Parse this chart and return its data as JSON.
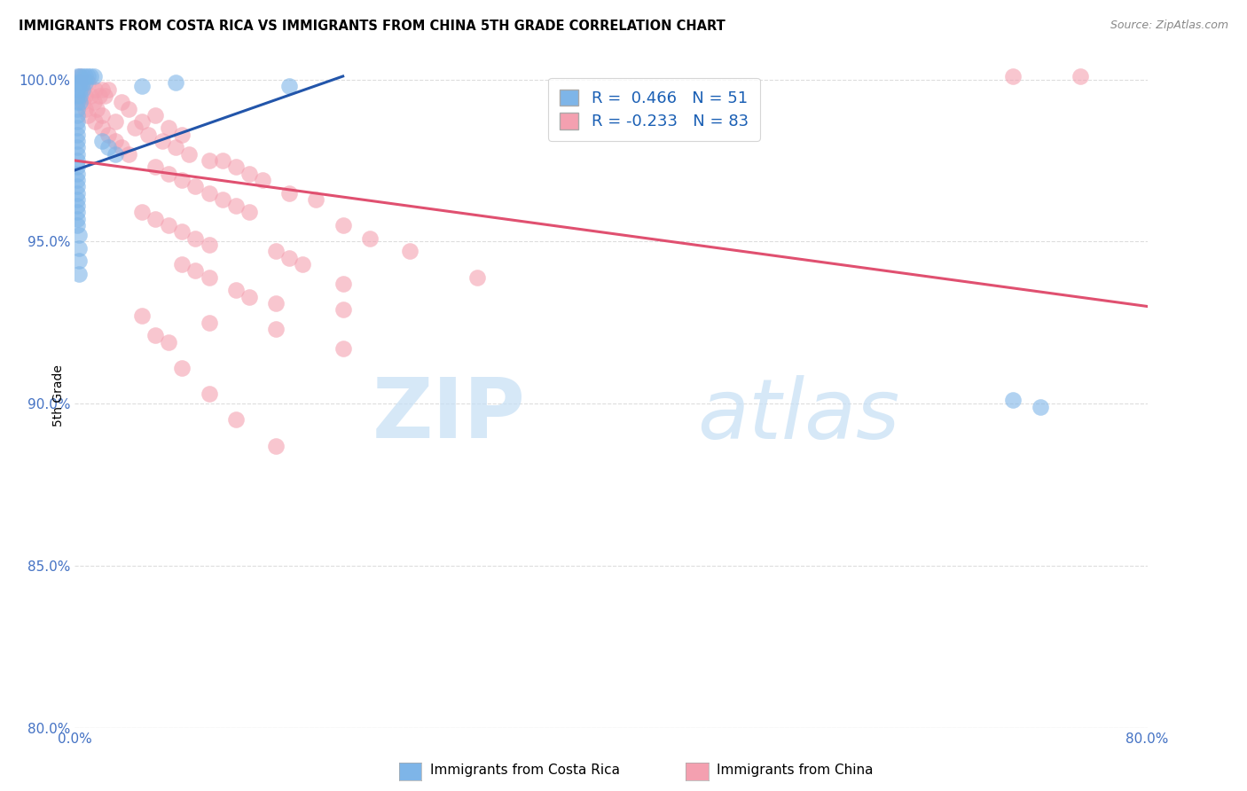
{
  "title": "IMMIGRANTS FROM COSTA RICA VS IMMIGRANTS FROM CHINA 5TH GRADE CORRELATION CHART",
  "source": "Source: ZipAtlas.com",
  "ylabel": "5th Grade",
  "x_min": 0.0,
  "x_max": 0.8,
  "y_min": 0.8,
  "y_max": 1.005,
  "x_tick_positions": [
    0.0,
    0.1,
    0.2,
    0.3,
    0.4,
    0.5,
    0.6,
    0.7,
    0.8
  ],
  "x_tick_labels": [
    "0.0%",
    "",
    "",
    "",
    "",
    "",
    "",
    "",
    "80.0%"
  ],
  "y_tick_positions": [
    0.8,
    0.85,
    0.9,
    0.95,
    1.0
  ],
  "y_tick_labels": [
    "80.0%",
    "85.0%",
    "90.0%",
    "95.0%",
    "100.0%"
  ],
  "blue_color": "#7eb5e8",
  "pink_color": "#f4a0b0",
  "blue_line_color": "#2255aa",
  "pink_line_color": "#e05070",
  "blue_line_x": [
    0.0,
    0.2
  ],
  "blue_line_y": [
    0.972,
    1.001
  ],
  "pink_line_x": [
    0.0,
    0.8
  ],
  "pink_line_y": [
    0.975,
    0.93
  ],
  "blue_dots": [
    [
      0.002,
      1.001
    ],
    [
      0.004,
      1.001
    ],
    [
      0.006,
      1.001
    ],
    [
      0.008,
      1.001
    ],
    [
      0.01,
      1.001
    ],
    [
      0.012,
      1.001
    ],
    [
      0.014,
      1.001
    ],
    [
      0.002,
      0.999
    ],
    [
      0.004,
      0.999
    ],
    [
      0.006,
      0.999
    ],
    [
      0.008,
      0.999
    ],
    [
      0.002,
      0.997
    ],
    [
      0.004,
      0.997
    ],
    [
      0.006,
      0.997
    ],
    [
      0.002,
      0.995
    ],
    [
      0.004,
      0.995
    ],
    [
      0.002,
      0.993
    ],
    [
      0.004,
      0.993
    ],
    [
      0.002,
      0.991
    ],
    [
      0.002,
      0.989
    ],
    [
      0.002,
      0.987
    ],
    [
      0.002,
      0.985
    ],
    [
      0.002,
      0.983
    ],
    [
      0.002,
      0.981
    ],
    [
      0.002,
      0.979
    ],
    [
      0.002,
      0.977
    ],
    [
      0.002,
      0.975
    ],
    [
      0.002,
      0.973
    ],
    [
      0.002,
      0.971
    ],
    [
      0.002,
      0.969
    ],
    [
      0.002,
      0.967
    ],
    [
      0.002,
      0.965
    ],
    [
      0.002,
      0.963
    ],
    [
      0.002,
      0.961
    ],
    [
      0.002,
      0.959
    ],
    [
      0.002,
      0.957
    ],
    [
      0.002,
      0.955
    ],
    [
      0.05,
      0.998
    ],
    [
      0.16,
      0.998
    ],
    [
      0.02,
      0.981
    ],
    [
      0.025,
      0.979
    ],
    [
      0.03,
      0.977
    ],
    [
      0.075,
      0.999
    ],
    [
      0.7,
      0.901
    ],
    [
      0.72,
      0.899
    ],
    [
      0.003,
      0.952
    ],
    [
      0.003,
      0.948
    ],
    [
      0.003,
      0.944
    ],
    [
      0.003,
      0.94
    ]
  ],
  "pink_dots": [
    [
      0.004,
      1.001
    ],
    [
      0.7,
      1.001
    ],
    [
      0.75,
      1.001
    ],
    [
      0.004,
      0.999
    ],
    [
      0.01,
      0.999
    ],
    [
      0.015,
      0.997
    ],
    [
      0.02,
      0.997
    ],
    [
      0.025,
      0.997
    ],
    [
      0.008,
      0.995
    ],
    [
      0.012,
      0.995
    ],
    [
      0.018,
      0.995
    ],
    [
      0.022,
      0.995
    ],
    [
      0.006,
      0.993
    ],
    [
      0.014,
      0.993
    ],
    [
      0.035,
      0.993
    ],
    [
      0.008,
      0.991
    ],
    [
      0.016,
      0.991
    ],
    [
      0.04,
      0.991
    ],
    [
      0.01,
      0.989
    ],
    [
      0.02,
      0.989
    ],
    [
      0.06,
      0.989
    ],
    [
      0.015,
      0.987
    ],
    [
      0.03,
      0.987
    ],
    [
      0.05,
      0.987
    ],
    [
      0.02,
      0.985
    ],
    [
      0.045,
      0.985
    ],
    [
      0.07,
      0.985
    ],
    [
      0.025,
      0.983
    ],
    [
      0.055,
      0.983
    ],
    [
      0.08,
      0.983
    ],
    [
      0.03,
      0.981
    ],
    [
      0.065,
      0.981
    ],
    [
      0.035,
      0.979
    ],
    [
      0.075,
      0.979
    ],
    [
      0.04,
      0.977
    ],
    [
      0.085,
      0.977
    ],
    [
      0.1,
      0.975
    ],
    [
      0.11,
      0.975
    ],
    [
      0.06,
      0.973
    ],
    [
      0.12,
      0.973
    ],
    [
      0.07,
      0.971
    ],
    [
      0.13,
      0.971
    ],
    [
      0.08,
      0.969
    ],
    [
      0.14,
      0.969
    ],
    [
      0.09,
      0.967
    ],
    [
      0.1,
      0.965
    ],
    [
      0.16,
      0.965
    ],
    [
      0.11,
      0.963
    ],
    [
      0.18,
      0.963
    ],
    [
      0.12,
      0.961
    ],
    [
      0.05,
      0.959
    ],
    [
      0.13,
      0.959
    ],
    [
      0.06,
      0.957
    ],
    [
      0.07,
      0.955
    ],
    [
      0.2,
      0.955
    ],
    [
      0.08,
      0.953
    ],
    [
      0.09,
      0.951
    ],
    [
      0.22,
      0.951
    ],
    [
      0.1,
      0.949
    ],
    [
      0.15,
      0.947
    ],
    [
      0.25,
      0.947
    ],
    [
      0.16,
      0.945
    ],
    [
      0.08,
      0.943
    ],
    [
      0.17,
      0.943
    ],
    [
      0.09,
      0.941
    ],
    [
      0.1,
      0.939
    ],
    [
      0.3,
      0.939
    ],
    [
      0.2,
      0.937
    ],
    [
      0.12,
      0.935
    ],
    [
      0.13,
      0.933
    ],
    [
      0.15,
      0.931
    ],
    [
      0.2,
      0.929
    ],
    [
      0.05,
      0.927
    ],
    [
      0.1,
      0.925
    ],
    [
      0.15,
      0.923
    ],
    [
      0.06,
      0.921
    ],
    [
      0.07,
      0.919
    ],
    [
      0.2,
      0.917
    ],
    [
      0.08,
      0.911
    ],
    [
      0.1,
      0.903
    ],
    [
      0.12,
      0.895
    ],
    [
      0.15,
      0.887
    ]
  ],
  "watermark_zip": "ZIP",
  "watermark_atlas": "atlas",
  "background_color": "#ffffff",
  "grid_color": "#dddddd"
}
